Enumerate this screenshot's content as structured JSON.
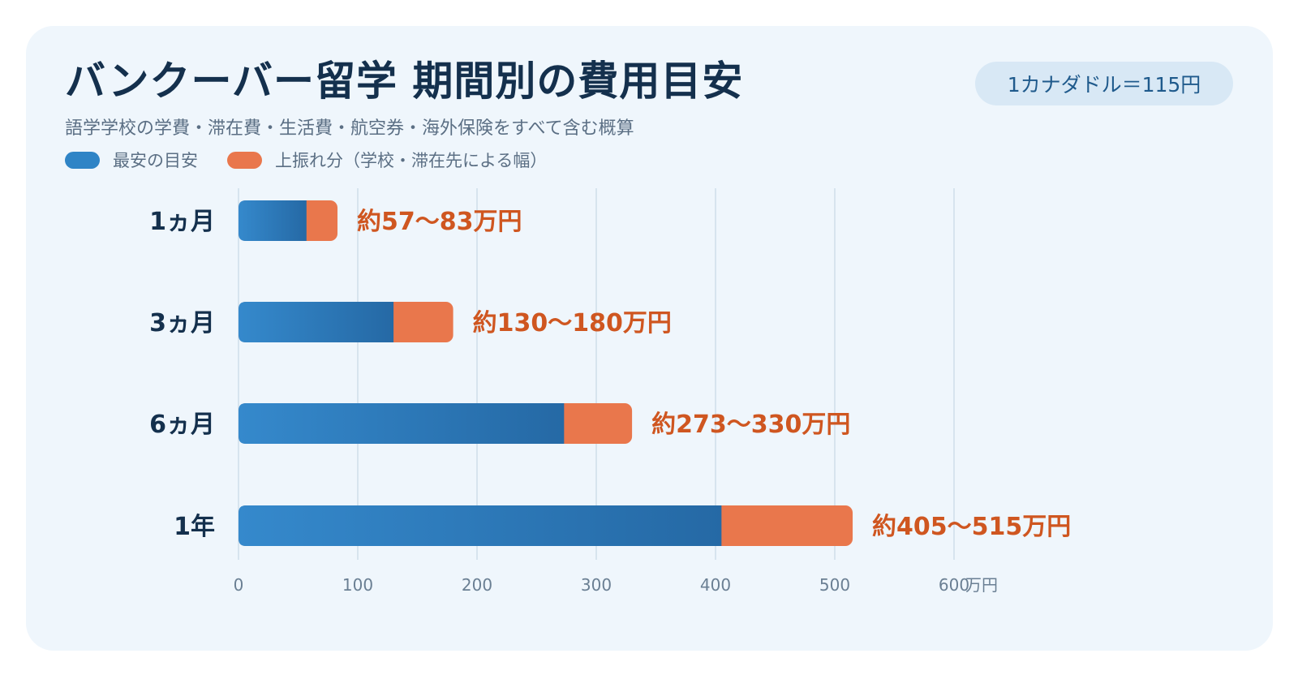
{
  "header": {
    "title": "バンクーバー留学 期間別の費用目安",
    "subtitle": "語学学校の学費・滞在費・生活費・航空券・海外保険をすべて含む概算",
    "rate_badge": "1カナダドル＝115円"
  },
  "legend": {
    "base_label": "最安の目安",
    "range_label": "上振れ分（学校・滞在先による幅）"
  },
  "colors": {
    "base_start": "#3589cc",
    "base_end": "#2569a5",
    "range": "#e9774c",
    "value_text": "#cf5620",
    "grid": "#cfdde9"
  },
  "chart_data": {
    "type": "bar",
    "orientation": "horizontal",
    "stacked": true,
    "categories": [
      "1ヵ月",
      "3ヵ月",
      "6ヵ月",
      "1年"
    ],
    "series": [
      {
        "name": "最安の目安",
        "values": [
          57,
          130,
          273,
          405
        ]
      },
      {
        "name": "上振れ分（学校・滞在先による幅）",
        "values": [
          26,
          50,
          57,
          110
        ]
      }
    ],
    "value_labels": [
      "約57〜83万円",
      "約130〜180万円",
      "約273〜330万円",
      "約405〜515万円"
    ],
    "xlim": [
      0,
      600
    ],
    "x_ticks": [
      "0",
      "100",
      "200",
      "300",
      "400",
      "500",
      "600"
    ],
    "x_unit": "万円",
    "grid": true,
    "legend_position": "top-left"
  }
}
